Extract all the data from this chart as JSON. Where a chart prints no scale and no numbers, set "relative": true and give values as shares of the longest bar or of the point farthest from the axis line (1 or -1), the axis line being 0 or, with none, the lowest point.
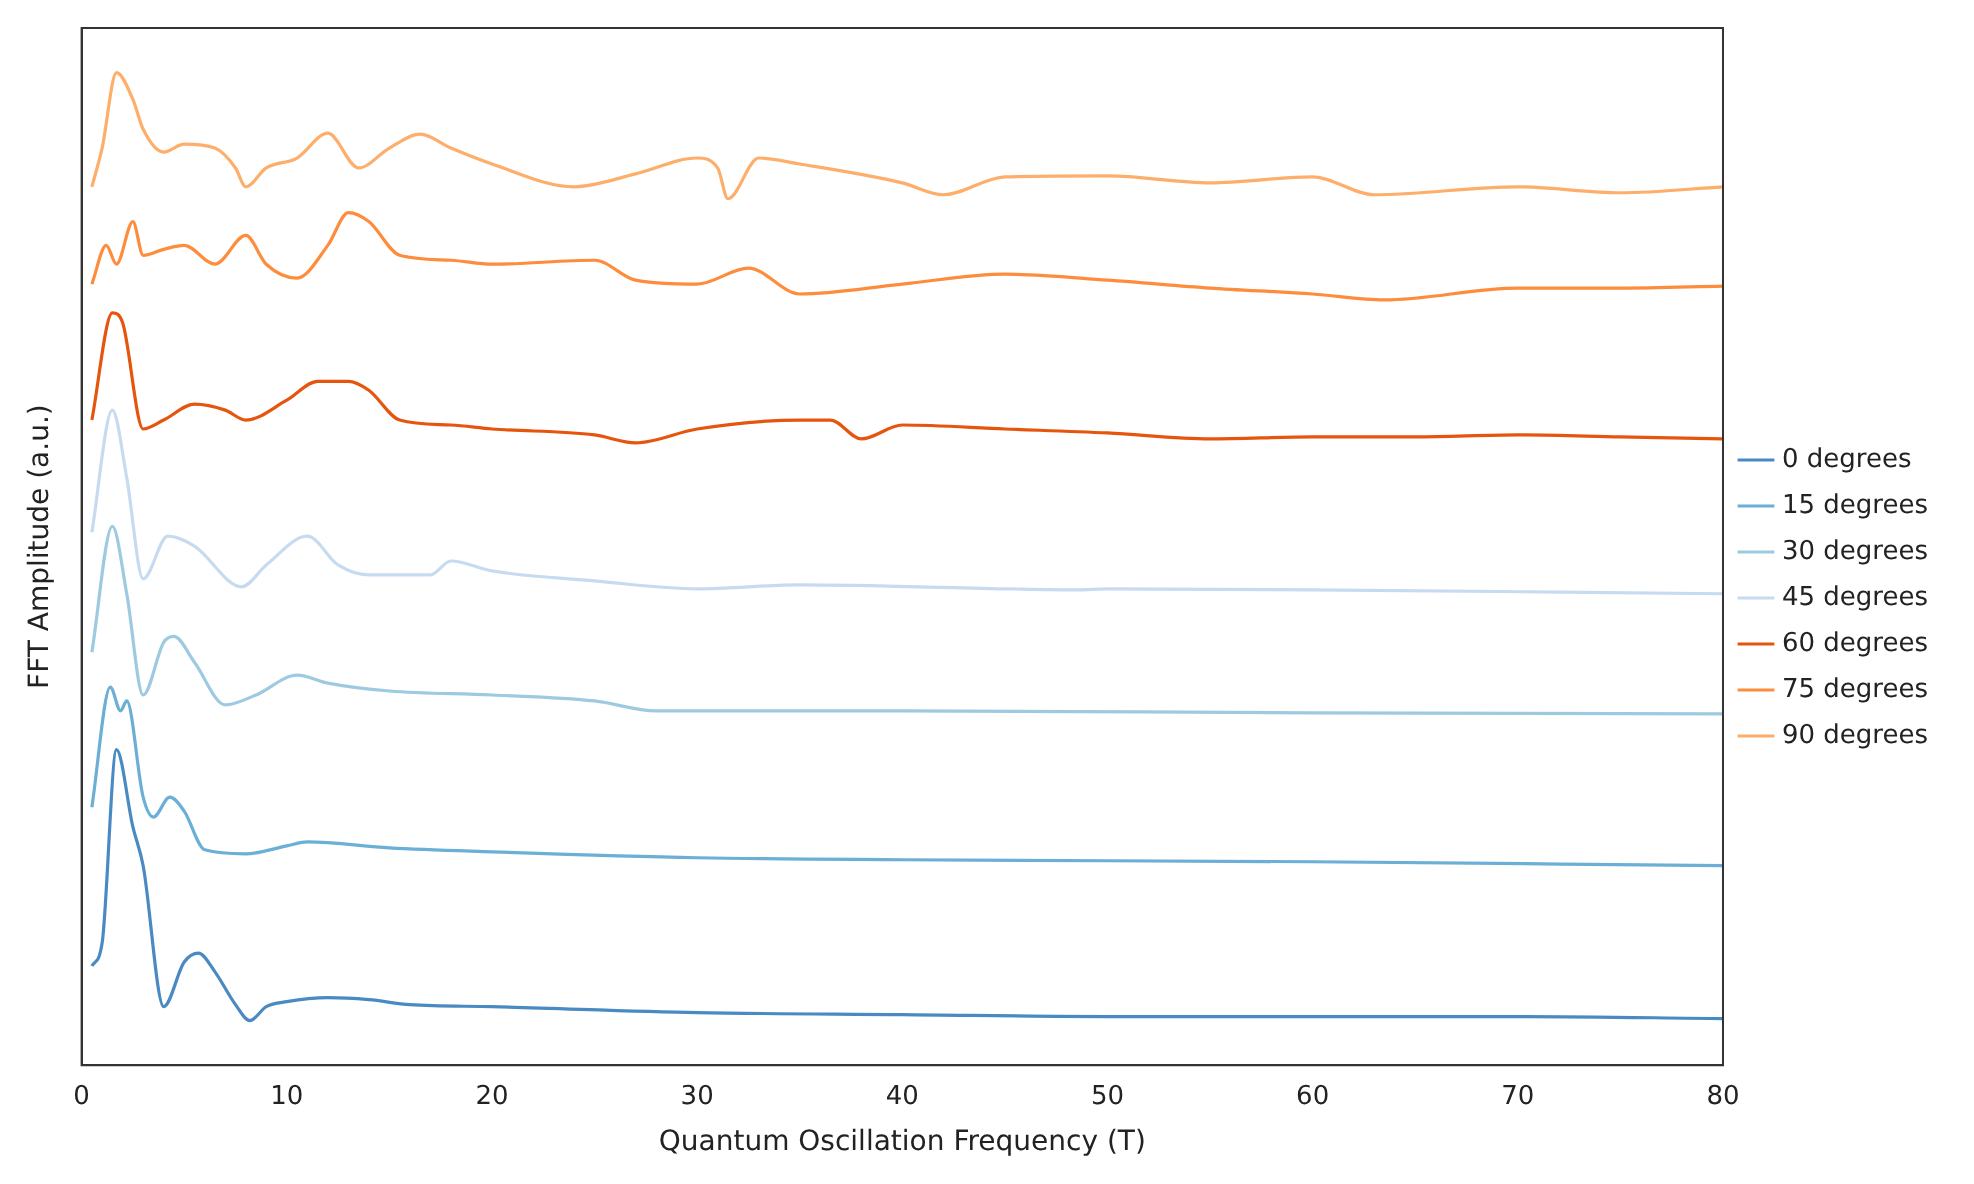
{
  "chart_data": {
    "type": "line",
    "relative": true,
    "xlabel": "Quantum Oscillation Frequency (T)",
    "ylabel": "FFT Amplitude (a.u.)",
    "xlim": [
      0,
      80
    ],
    "xticks": [
      0,
      10,
      20,
      30,
      40,
      50,
      60,
      70,
      80
    ],
    "grid": false,
    "legend": "right",
    "marker": "none",
    "line_style": "solid",
    "series": [
      {
        "name": "0 degrees",
        "color": "#4a8ac2",
        "x": [
          0.5,
          1,
          1.7,
          2.5,
          3,
          4,
          5,
          5.7,
          6.5,
          7.5,
          8.2,
          9,
          10,
          12,
          14,
          16,
          20,
          30,
          40,
          50,
          60,
          70,
          80
        ],
        "values": [
          0.1,
          0.123,
          0.318,
          0.24,
          0.201,
          0.059,
          0.104,
          0.113,
          0.094,
          0.061,
          0.045,
          0.059,
          0.064,
          0.068,
          0.066,
          0.061,
          0.059,
          0.053,
          0.051,
          0.049,
          0.049,
          0.049,
          0.047
        ]
      },
      {
        "name": "15 degrees",
        "color": "#6baed6",
        "x": [
          0.5,
          1.4,
          1.9,
          2.2,
          3,
          3.5,
          4.3,
          5,
          6,
          8,
          10,
          11,
          15,
          20,
          30,
          40,
          60,
          80
        ],
        "values": [
          0.26,
          0.381,
          0.357,
          0.367,
          0.27,
          0.25,
          0.27,
          0.256,
          0.217,
          0.213,
          0.221,
          0.225,
          0.219,
          0.215,
          0.209,
          0.207,
          0.205,
          0.201
        ]
      },
      {
        "name": "30 degrees",
        "color": "#9ecae1",
        "x": [
          0.5,
          1.5,
          2.2,
          3,
          4,
          4.5,
          5.5,
          7,
          8.5,
          10.5,
          12,
          15,
          20,
          25,
          28,
          40,
          60,
          80
        ],
        "values": [
          0.416,
          0.543,
          0.475,
          0.373,
          0.426,
          0.432,
          0.406,
          0.363,
          0.373,
          0.393,
          0.385,
          0.377,
          0.373,
          0.367,
          0.357,
          0.357,
          0.355,
          0.354
        ]
      },
      {
        "name": "45 degrees",
        "color": "#c6dbef",
        "x": [
          0.5,
          1.5,
          2.2,
          3,
          4.2,
          5.5,
          7.8,
          9,
          11,
          12.5,
          14,
          17,
          18,
          20,
          25,
          30,
          35,
          45,
          48.5,
          50,
          60,
          80
        ],
        "values": [
          0.537,
          0.66,
          0.592,
          0.49,
          0.533,
          0.523,
          0.482,
          0.504,
          0.533,
          0.504,
          0.494,
          0.494,
          0.508,
          0.498,
          0.488,
          0.48,
          0.484,
          0.48,
          0.479,
          0.48,
          0.479,
          0.475
        ]
      },
      {
        "name": "60 degrees",
        "color": "#e6550d",
        "x": [
          0.5,
          1.5,
          2,
          3,
          4,
          5.5,
          7,
          8,
          10,
          11.5,
          13,
          14,
          15.5,
          18,
          20,
          25,
          27,
          30,
          35,
          36.5,
          38,
          40,
          45,
          50,
          55,
          60,
          65,
          70,
          75,
          80
        ],
        "values": [
          0.65,
          0.758,
          0.748,
          0.641,
          0.65,
          0.666,
          0.66,
          0.65,
          0.67,
          0.689,
          0.689,
          0.68,
          0.65,
          0.645,
          0.641,
          0.635,
          0.627,
          0.641,
          0.65,
          0.65,
          0.631,
          0.645,
          0.641,
          0.637,
          0.631,
          0.633,
          0.633,
          0.635,
          0.633,
          0.631
        ]
      },
      {
        "name": "75 degrees",
        "color": "#fd8d3c",
        "x": [
          0.5,
          1.2,
          1.7,
          2.5,
          3,
          4,
          5,
          6.5,
          8,
          9,
          10.5,
          12,
          13,
          14,
          15.5,
          18,
          20,
          25,
          27,
          30,
          32.5,
          35,
          40,
          45,
          50,
          55,
          60,
          63.5,
          70,
          75,
          80
        ],
        "values": [
          0.787,
          0.826,
          0.807,
          0.85,
          0.816,
          0.822,
          0.826,
          0.807,
          0.836,
          0.807,
          0.793,
          0.826,
          0.859,
          0.85,
          0.816,
          0.811,
          0.807,
          0.811,
          0.791,
          0.787,
          0.803,
          0.777,
          0.787,
          0.797,
          0.791,
          0.783,
          0.777,
          0.771,
          0.783,
          0.783,
          0.785
        ]
      },
      {
        "name": "90 degrees",
        "color": "#fdae6b",
        "x": [
          0.5,
          1,
          1.7,
          2.5,
          3,
          4,
          5,
          6.5,
          7.5,
          8,
          9,
          10.5,
          12,
          13.5,
          15,
          16.5,
          18,
          20,
          24,
          27,
          30,
          31,
          31.5,
          33,
          35,
          40,
          42,
          45,
          50,
          55,
          60,
          63,
          70,
          75,
          80
        ],
        "values": [
          0.885,
          0.924,
          1.0,
          0.973,
          0.943,
          0.92,
          0.928,
          0.924,
          0.904,
          0.885,
          0.904,
          0.914,
          0.939,
          0.904,
          0.924,
          0.938,
          0.924,
          0.908,
          0.885,
          0.898,
          0.914,
          0.904,
          0.873,
          0.914,
          0.908,
          0.889,
          0.877,
          0.895,
          0.896,
          0.889,
          0.895,
          0.877,
          0.885,
          0.879,
          0.885
        ]
      }
    ]
  }
}
